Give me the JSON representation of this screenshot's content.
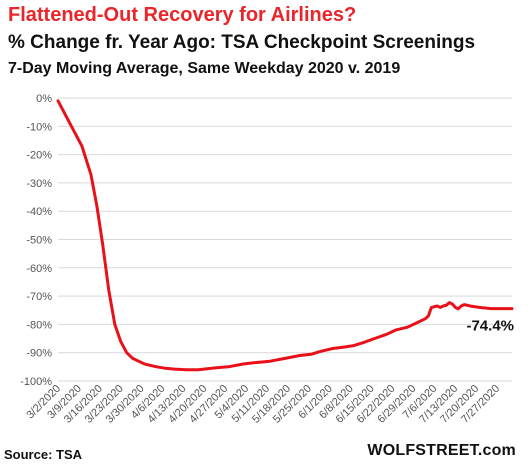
{
  "header": {
    "title": "Flattened-Out  Recovery for Airlines?",
    "subtitle1": "% Change  fr. Year Ago: TSA Checkpoint Screenings",
    "subtitle2": "7-Day Moving Average, Same Weekday 2020 v. 2019"
  },
  "footer": {
    "source": "Source: TSA",
    "brand": "WOLFSTREET.com"
  },
  "colors": {
    "line": "#e8111a",
    "grid": "#d9d9d9",
    "axis_text": "#555555"
  },
  "chart_data": {
    "type": "line",
    "title": "Flattened-Out  Recovery for Airlines?",
    "xlabel": "",
    "ylabel": "",
    "grid": true,
    "legend": "none",
    "ylim": [
      -100,
      0
    ],
    "xlim": [
      "2020-03-01",
      "2020-07-31"
    ],
    "y_ticks": [
      0,
      -10,
      -20,
      -30,
      -40,
      -50,
      -60,
      -70,
      -80,
      -90,
      -100
    ],
    "y_tick_labels": [
      "0%",
      "-10%",
      "-20%",
      "-30%",
      "-40%",
      "-50%",
      "-60%",
      "-70%",
      "-80%",
      "-90%",
      "-100%"
    ],
    "x_tick_labels": [
      "3/2/2020",
      "3/9/2020",
      "3/16/2020",
      "3/23/2020",
      "3/30/2020",
      "4/6/2020",
      "4/13/2020",
      "4/20/2020",
      "4/27/2020",
      "5/4/2020",
      "5/11/2020",
      "5/18/2020",
      "5/25/2020",
      "6/1/2020",
      "6/8/2020",
      "6/15/2020",
      "6/22/2020",
      "6/29/2020",
      "7/6/2020",
      "7/13/2020",
      "7/20/2020",
      "7/27/2020"
    ],
    "x_tick_dates": [
      "2020-03-02",
      "2020-03-09",
      "2020-03-16",
      "2020-03-23",
      "2020-03-30",
      "2020-04-06",
      "2020-04-13",
      "2020-04-20",
      "2020-04-27",
      "2020-05-04",
      "2020-05-11",
      "2020-05-18",
      "2020-05-25",
      "2020-06-01",
      "2020-06-08",
      "2020-06-15",
      "2020-06-22",
      "2020-06-29",
      "2020-07-06",
      "2020-07-13",
      "2020-07-20",
      "2020-07-27"
    ],
    "annotation": {
      "text": "-74.4%",
      "date": "2020-07-31",
      "value": -74.4
    },
    "series": [
      {
        "x": [
          "2020-03-01",
          "2020-03-03",
          "2020-03-06",
          "2020-03-09",
          "2020-03-12",
          "2020-03-14",
          "2020-03-16",
          "2020-03-18",
          "2020-03-20",
          "2020-03-22",
          "2020-03-24",
          "2020-03-26",
          "2020-03-28",
          "2020-03-30",
          "2020-04-01",
          "2020-04-03",
          "2020-04-06",
          "2020-04-09",
          "2020-04-13",
          "2020-04-17",
          "2020-04-20",
          "2020-04-23",
          "2020-04-27",
          "2020-05-02",
          "2020-05-06",
          "2020-05-11",
          "2020-05-16",
          "2020-05-21",
          "2020-05-25",
          "2020-05-28",
          "2020-06-01",
          "2020-06-05",
          "2020-06-08",
          "2020-06-11",
          "2020-06-15",
          "2020-06-19",
          "2020-06-22",
          "2020-06-26",
          "2020-06-29",
          "2020-07-02",
          "2020-07-03",
          "2020-07-04",
          "2020-07-06",
          "2020-07-07",
          "2020-07-08",
          "2020-07-09",
          "2020-07-10",
          "2020-07-11",
          "2020-07-12",
          "2020-07-13",
          "2020-07-14",
          "2020-07-15",
          "2020-07-17",
          "2020-07-20",
          "2020-07-24",
          "2020-07-27",
          "2020-07-31"
        ],
        "values": [
          -1,
          -5,
          -11,
          -17,
          -27,
          -38,
          -52,
          -68,
          -80,
          -86,
          -90,
          -92,
          -93,
          -94,
          -94.5,
          -95,
          -95.5,
          -95.8,
          -96,
          -96,
          -95.7,
          -95.3,
          -95,
          -94,
          -93.5,
          -93,
          -92,
          -91,
          -90.5,
          -89.5,
          -88.5,
          -88,
          -87.5,
          -86.5,
          -85,
          -83.5,
          -82,
          -81,
          -79.5,
          -78,
          -77,
          -74,
          -73.5,
          -74,
          -73.5,
          -73.2,
          -72.3,
          -72.8,
          -74,
          -74.5,
          -73.5,
          -73,
          -73.5,
          -74,
          -74.4,
          -74.4,
          -74.4
        ]
      }
    ]
  }
}
